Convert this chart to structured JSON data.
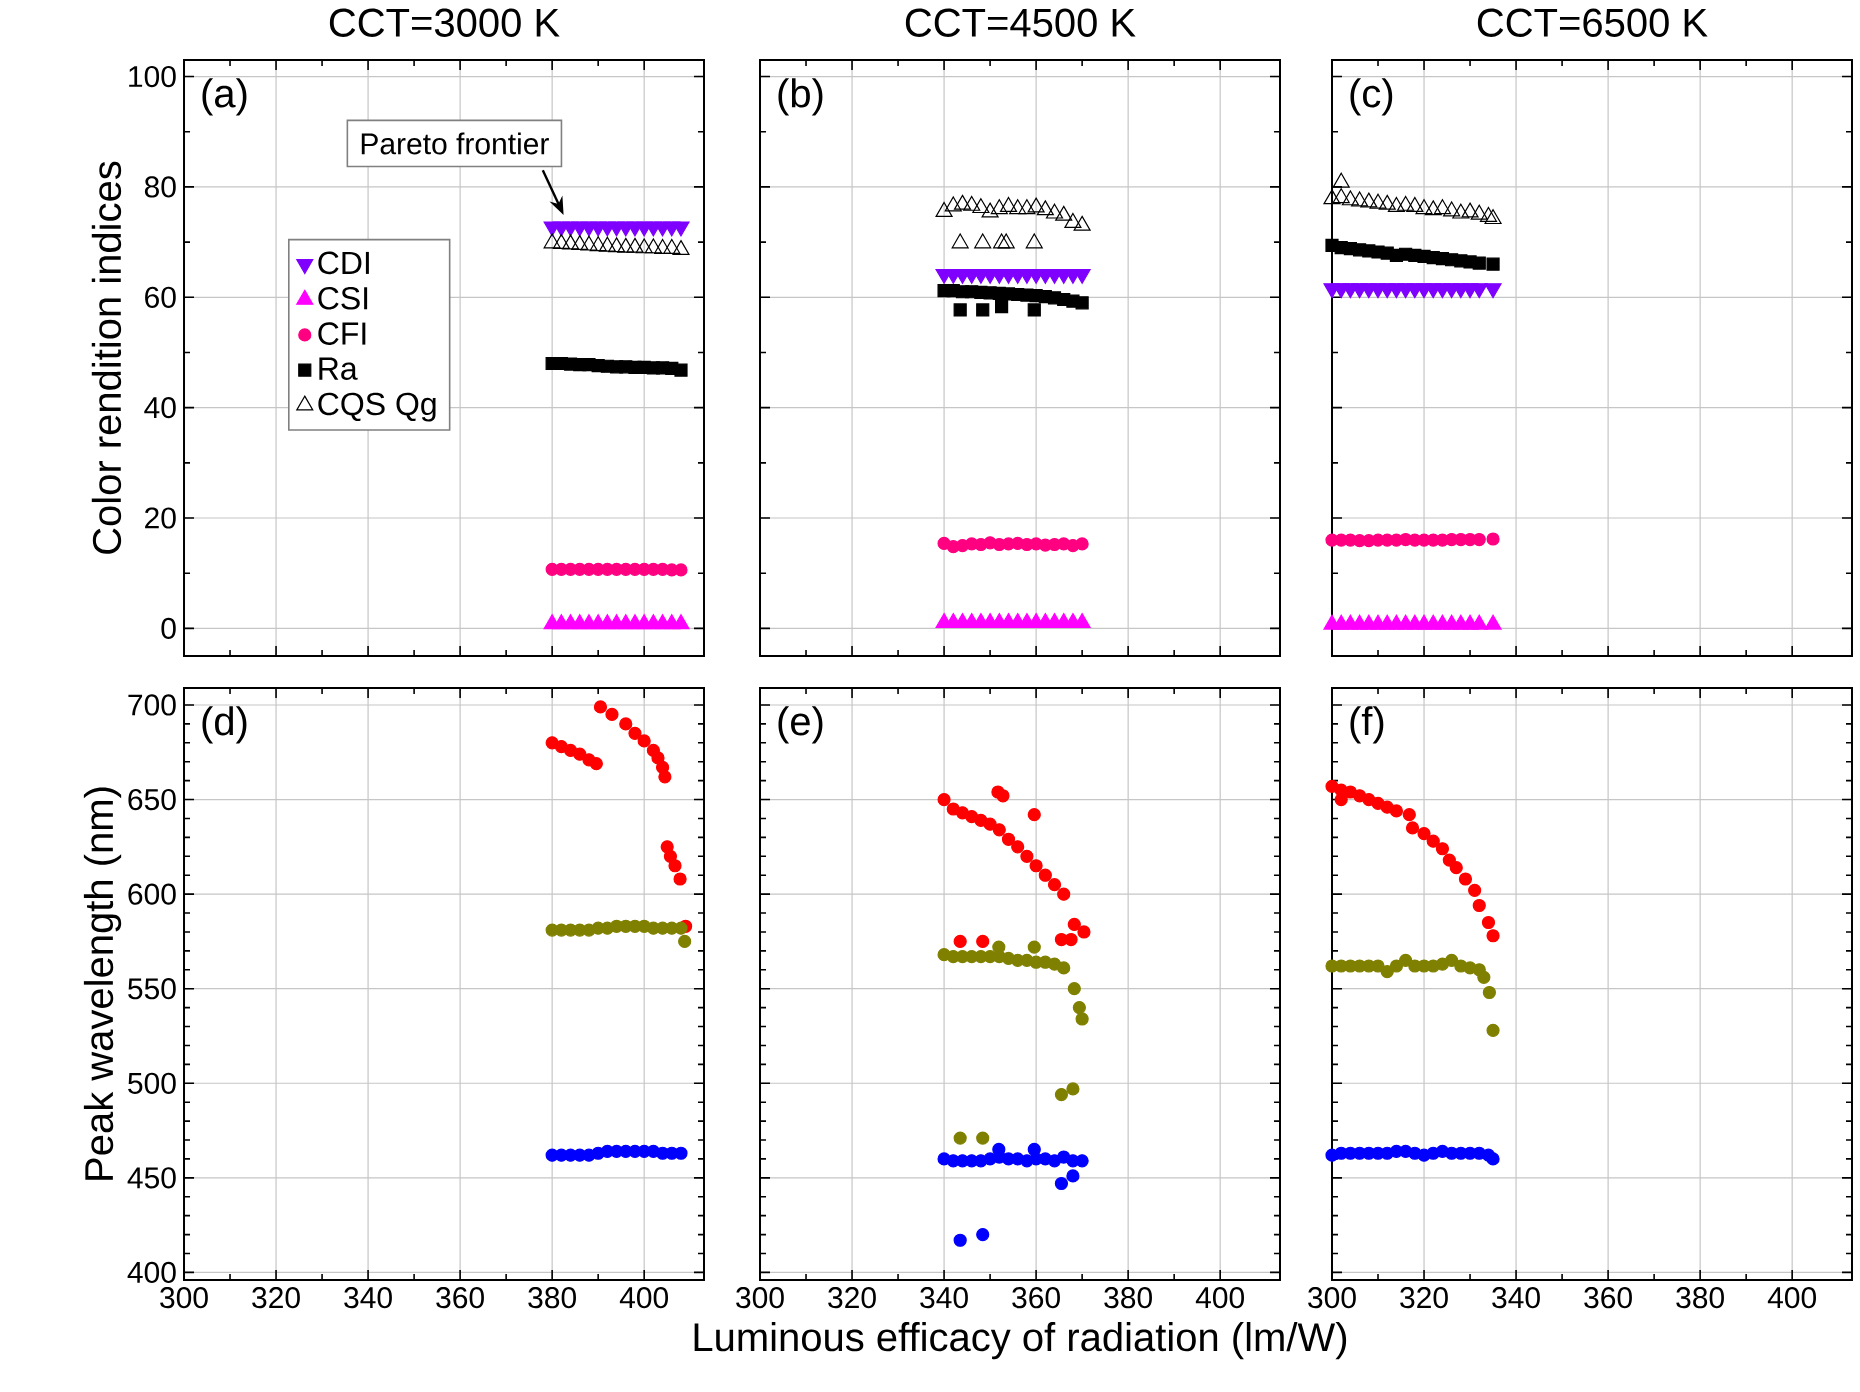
{
  "chart_data": [
    {
      "type": "scatter",
      "title": "CCT=3000 K",
      "ylabel": "Color rendition indices",
      "xlim": [
        300,
        413
      ],
      "ylim": [
        -5,
        103
      ],
      "xticks": [
        300,
        320,
        340,
        360,
        380,
        400
      ],
      "yticks": [
        0,
        20,
        40,
        60,
        80,
        100
      ],
      "grid": true,
      "legend": "top left",
      "tick_labels": "y",
      "annotations": [
        "(a)",
        "Pareto frontier"
      ],
      "series": [
        {
          "name": "CDI",
          "color": "#7f00ff",
          "marker": "triangle_down",
          "x": [
            380,
            382,
            384,
            386,
            388,
            390,
            392,
            394,
            396,
            398,
            400,
            402,
            404,
            406,
            408
          ],
          "values": [
            72.8,
            72.8,
            72.8,
            72.8,
            72.8,
            72.8,
            72.8,
            72.8,
            72.8,
            72.8,
            72.8,
            72.8,
            72.8,
            72.8,
            72.8
          ]
        },
        {
          "name": "CSI",
          "color": "#ff00ff",
          "marker": "triangle",
          "x": [
            380,
            382,
            384,
            386,
            388,
            390,
            392,
            394,
            396,
            398,
            400,
            402,
            404,
            406,
            408
          ],
          "values": [
            0.8,
            0.8,
            0.8,
            0.8,
            0.8,
            0.8,
            0.8,
            0.8,
            0.8,
            0.8,
            0.8,
            0.8,
            0.8,
            0.8,
            0.8
          ]
        },
        {
          "name": "CFI",
          "color": "#ff0080",
          "marker": "circle",
          "x": [
            380,
            382,
            384,
            386,
            388,
            390,
            392,
            394,
            396,
            398,
            400,
            402,
            404,
            406,
            408
          ],
          "values": [
            10.7,
            10.7,
            10.7,
            10.7,
            10.7,
            10.7,
            10.7,
            10.7,
            10.7,
            10.7,
            10.7,
            10.7,
            10.7,
            10.6,
            10.6
          ]
        },
        {
          "name": "Ra",
          "color": "#000000",
          "marker": "square",
          "x": [
            380,
            382,
            384,
            386,
            388,
            390,
            392,
            394,
            396,
            398,
            400,
            402,
            404,
            406,
            408
          ],
          "values": [
            48.0,
            48.0,
            47.9,
            47.8,
            47.8,
            47.6,
            47.5,
            47.4,
            47.4,
            47.3,
            47.3,
            47.2,
            47.2,
            47.1,
            46.8
          ]
        },
        {
          "name": "CQS Qg",
          "color": "#000000",
          "marker": "triangle",
          "x": [
            380,
            382,
            384,
            386,
            388,
            390,
            392,
            394,
            396,
            398,
            400,
            402,
            404,
            406,
            408
          ],
          "values": [
            69.8,
            69.7,
            69.6,
            69.5,
            69.4,
            69.3,
            69.2,
            69.1,
            69.0,
            69.0,
            68.9,
            68.9,
            68.8,
            68.8,
            68.6
          ]
        }
      ]
    },
    {
      "type": "scatter",
      "title": "CCT=4500 K",
      "xlim": [
        300,
        413
      ],
      "ylim": [
        -5,
        103
      ],
      "xticks": [
        300,
        320,
        340,
        360,
        380,
        400
      ],
      "yticks": [
        0,
        20,
        40,
        60,
        80,
        100
      ],
      "grid": true,
      "tick_labels": false,
      "annotations": [
        "(b)"
      ],
      "series": [
        {
          "color": "#7f00ff",
          "marker": "triangle_down",
          "x": [
            340,
            342,
            344,
            346,
            348,
            350,
            352,
            354,
            356,
            358,
            360,
            362,
            364,
            366,
            368,
            370
          ],
          "values": [
            64.2,
            64.2,
            64.2,
            64.2,
            64.2,
            64.2,
            64.2,
            64.2,
            64.2,
            64.2,
            64.2,
            64.2,
            64.2,
            64.2,
            64.2,
            64.2
          ]
        },
        {
          "color": "#ff00ff",
          "marker": "triangle",
          "x": [
            340,
            342,
            344,
            346,
            348,
            350,
            352,
            354,
            356,
            358,
            360,
            362,
            364,
            366,
            368,
            370
          ],
          "values": [
            1.0,
            1.0,
            1.0,
            1.0,
            1.0,
            1.0,
            1.0,
            1.0,
            1.0,
            1.0,
            1.0,
            1.0,
            1.0,
            1.0,
            1.0,
            1.0
          ]
        },
        {
          "color": "#ff0080",
          "marker": "circle",
          "x": [
            340,
            342,
            344,
            346,
            348,
            350,
            352,
            354,
            356,
            358,
            360,
            362,
            364,
            366,
            368,
            370
          ],
          "values": [
            15.4,
            14.8,
            15.0,
            15.3,
            15.2,
            15.5,
            15.2,
            15.3,
            15.4,
            15.2,
            15.3,
            15.1,
            15.2,
            15.3,
            15.0,
            15.3
          ]
        },
        {
          "color": "#000000",
          "marker": "square",
          "x": [
            340,
            342,
            344,
            346,
            348,
            350,
            352,
            354,
            356,
            358,
            360,
            362,
            364,
            366,
            368,
            370,
            343.5,
            348.4,
            352.5,
            359.6
          ],
          "values": [
            61.2,
            61.2,
            61.0,
            61.0,
            60.9,
            60.8,
            60.7,
            60.6,
            60.5,
            60.4,
            60.3,
            60.1,
            59.9,
            59.6,
            59.3,
            59.0,
            57.7,
            57.7,
            58.3,
            57.7
          ]
        },
        {
          "color": "#000000",
          "marker": "triangle",
          "x": [
            340,
            342,
            344,
            346,
            348,
            350,
            352,
            354,
            356,
            358,
            360,
            362,
            364,
            366,
            368,
            370,
            343.5,
            348.4,
            352.5,
            353.5,
            359.6
          ],
          "values": [
            75.5,
            76.5,
            76.8,
            76.6,
            76.2,
            75.4,
            76.0,
            76.4,
            76.0,
            76.0,
            76.3,
            75.8,
            75.2,
            74.8,
            73.5,
            73.0,
            69.8,
            69.8,
            69.8,
            69.8,
            69.8
          ]
        }
      ]
    },
    {
      "type": "scatter",
      "title": "CCT=6500 K",
      "xlim": [
        300,
        413
      ],
      "ylim": [
        -5,
        103
      ],
      "xticks": [
        300,
        320,
        340,
        360,
        380,
        400
      ],
      "yticks": [
        0,
        20,
        40,
        60,
        80,
        100
      ],
      "grid": true,
      "tick_labels": false,
      "annotations": [
        "(c)"
      ],
      "series": [
        {
          "color": "#7f00ff",
          "marker": "triangle_down",
          "x": [
            300,
            302,
            304,
            306,
            308,
            310,
            312,
            314,
            316,
            318,
            320,
            322,
            324,
            326,
            328,
            330,
            332,
            335
          ],
          "values": [
            61.6,
            61.6,
            61.6,
            61.6,
            61.6,
            61.6,
            61.6,
            61.6,
            61.6,
            61.6,
            61.6,
            61.6,
            61.6,
            61.6,
            61.6,
            61.6,
            61.6,
            61.6
          ]
        },
        {
          "color": "#ff00ff",
          "marker": "triangle",
          "x": [
            300,
            302,
            304,
            306,
            308,
            310,
            312,
            314,
            316,
            318,
            320,
            322,
            324,
            326,
            328,
            330,
            332,
            335
          ],
          "values": [
            0.7,
            0.7,
            0.7,
            0.7,
            0.7,
            0.7,
            0.7,
            0.7,
            0.7,
            0.7,
            0.7,
            0.7,
            0.7,
            0.7,
            0.7,
            0.7,
            0.7,
            0.7
          ]
        },
        {
          "color": "#ff0080",
          "marker": "circle",
          "x": [
            300,
            302,
            304,
            306,
            308,
            310,
            312,
            314,
            316,
            318,
            320,
            322,
            324,
            326,
            328,
            330,
            332,
            335
          ],
          "values": [
            16.0,
            16.0,
            16.0,
            15.9,
            15.9,
            16.0,
            16.0,
            16.0,
            16.1,
            16.0,
            16.0,
            16.0,
            16.0,
            16.1,
            16.1,
            16.1,
            16.1,
            16.2
          ]
        },
        {
          "color": "#000000",
          "marker": "square",
          "x": [
            300,
            302,
            304,
            306,
            308,
            310,
            312,
            314,
            316,
            318,
            320,
            322,
            324,
            326,
            328,
            330,
            332,
            335
          ],
          "values": [
            69.4,
            69.0,
            68.8,
            68.6,
            68.4,
            68.2,
            68.0,
            67.6,
            67.8,
            67.6,
            67.4,
            67.2,
            67.0,
            66.8,
            66.6,
            66.4,
            66.2,
            66.0
          ]
        },
        {
          "color": "#000000",
          "marker": "triangle",
          "x": [
            300,
            302,
            304,
            306,
            308,
            310,
            312,
            314,
            316,
            318,
            320,
            322,
            324,
            326,
            328,
            330,
            332,
            334,
            335,
            302
          ],
          "values": [
            77.8,
            78.0,
            77.6,
            77.4,
            77.2,
            77.0,
            76.8,
            76.4,
            76.6,
            76.4,
            76.0,
            75.8,
            76.0,
            75.6,
            75.2,
            75.4,
            75.0,
            74.6,
            74.2,
            80.8
          ]
        }
      ]
    },
    {
      "type": "scatter",
      "ylabel": "Peak wavelength (nm)",
      "xlim": [
        300,
        413
      ],
      "ylim": [
        396,
        709
      ],
      "xticks": [
        300,
        320,
        340,
        360,
        380,
        400
      ],
      "yticks": [
        400,
        450,
        500,
        550,
        600,
        650,
        700
      ],
      "grid": true,
      "annotations": [
        "(d)"
      ],
      "series": [
        {
          "color": "#ff0000",
          "marker": "circle",
          "x": [
            380,
            382,
            384,
            386,
            388,
            389.6,
            390.5,
            393,
            396,
            398,
            400,
            402,
            403,
            404,
            404.5,
            405,
            405.7,
            406.7,
            407.8,
            409
          ],
          "values": [
            680,
            678,
            676,
            674,
            671,
            669,
            699,
            695,
            690,
            685,
            681,
            676,
            672,
            667,
            662,
            625,
            620,
            615,
            608,
            583
          ]
        },
        {
          "color": "#808000",
          "marker": "circle",
          "x": [
            380,
            382,
            384,
            386,
            388,
            390,
            392,
            394,
            396,
            398,
            400,
            402,
            404,
            406,
            408,
            408.8
          ],
          "values": [
            581,
            581,
            581,
            581,
            581,
            582,
            582,
            583,
            583,
            583,
            583,
            582,
            582,
            582,
            582,
            575
          ]
        },
        {
          "color": "#0000ff",
          "marker": "circle",
          "x": [
            380,
            382,
            384,
            386,
            388,
            390,
            392,
            394,
            396,
            398,
            400,
            402,
            404,
            406,
            408
          ],
          "values": [
            462,
            462,
            462,
            462,
            462,
            463,
            464,
            464,
            464,
            464,
            464,
            464,
            463,
            463,
            463
          ]
        }
      ]
    },
    {
      "type": "scatter",
      "xlabel": "Luminous efficacy of radiation (lm/W)",
      "xlim": [
        300,
        413
      ],
      "ylim": [
        396,
        709
      ],
      "xticks": [
        300,
        320,
        340,
        360,
        380,
        400
      ],
      "yticks": [
        400,
        450,
        500,
        550,
        600,
        650,
        700
      ],
      "grid": true,
      "tick_labels": "x",
      "annotations": [
        "(e)"
      ],
      "series": [
        {
          "color": "#ff0000",
          "marker": "circle",
          "x": [
            340,
            342,
            344,
            346,
            348,
            350,
            352,
            354,
            356,
            358,
            360,
            362,
            364,
            366,
            351.7,
            352.8,
            359.6,
            343.5,
            348.4,
            365.5,
            367.6,
            368.3,
            370.4
          ],
          "values": [
            650,
            645,
            643,
            641,
            639,
            637,
            634,
            629,
            625,
            620,
            615,
            610,
            605,
            600,
            654,
            652,
            642,
            575,
            575,
            576,
            576,
            584,
            580
          ]
        },
        {
          "color": "#808000",
          "marker": "circle",
          "x": [
            340,
            342,
            344,
            346,
            348,
            350,
            352,
            354,
            356,
            358,
            360,
            362,
            364,
            366,
            351.9,
            359.6,
            368.3,
            369.4,
            370,
            365.5,
            368,
            343.5,
            348.4
          ],
          "values": [
            568,
            567,
            567,
            567,
            567,
            567,
            567,
            566,
            565,
            565,
            564,
            564,
            563,
            561,
            572,
            572,
            550,
            540,
            534,
            494,
            497,
            471,
            471
          ]
        },
        {
          "color": "#0000ff",
          "marker": "circle",
          "x": [
            340,
            342,
            344,
            346,
            348,
            350,
            352,
            354,
            356,
            358,
            360,
            362,
            364,
            366,
            368,
            370,
            343.5,
            348.4,
            365.5,
            368,
            351.9,
            359.6
          ],
          "values": [
            460,
            459,
            459,
            459,
            459,
            460,
            461,
            460,
            460,
            459,
            460,
            460,
            459,
            461,
            459,
            459,
            417,
            420,
            447,
            451,
            465,
            465
          ]
        }
      ]
    },
    {
      "type": "scatter",
      "xlim": [
        300,
        413
      ],
      "ylim": [
        396,
        709
      ],
      "xticks": [
        300,
        320,
        340,
        360,
        380,
        400
      ],
      "yticks": [
        400,
        450,
        500,
        550,
        600,
        650,
        700
      ],
      "grid": true,
      "tick_labels": "x",
      "annotations": [
        "(f)"
      ],
      "series": [
        {
          "color": "#ff0000",
          "marker": "circle",
          "x": [
            300,
            302,
            304,
            306,
            308,
            310,
            312,
            314,
            316.8,
            317.5,
            320,
            322,
            324,
            325.5,
            327,
            329,
            331,
            332,
            334,
            335,
            302
          ],
          "values": [
            657,
            655,
            654,
            652,
            650,
            648,
            646,
            644,
            642,
            635,
            632,
            628,
            624,
            618,
            614,
            608,
            602,
            594,
            585,
            578,
            650
          ]
        },
        {
          "color": "#808000",
          "marker": "circle",
          "x": [
            300,
            302,
            304,
            306,
            308,
            310,
            312,
            314,
            316,
            318,
            320,
            322,
            324,
            326,
            328,
            330,
            332,
            333,
            334.2,
            335
          ],
          "values": [
            562,
            562,
            562,
            562,
            562,
            562,
            559,
            562,
            565,
            562,
            562,
            562,
            563,
            565,
            562,
            561,
            560,
            556,
            548,
            528
          ]
        },
        {
          "color": "#0000ff",
          "marker": "circle",
          "x": [
            300,
            302,
            304,
            306,
            308,
            310,
            312,
            314,
            316,
            318,
            320,
            322,
            324,
            326,
            328,
            330,
            332,
            334,
            335
          ],
          "values": [
            462,
            463,
            463,
            463,
            463,
            463,
            463,
            464,
            464,
            463,
            462,
            463,
            464,
            463,
            463,
            463,
            463,
            462,
            460
          ]
        }
      ]
    }
  ]
}
